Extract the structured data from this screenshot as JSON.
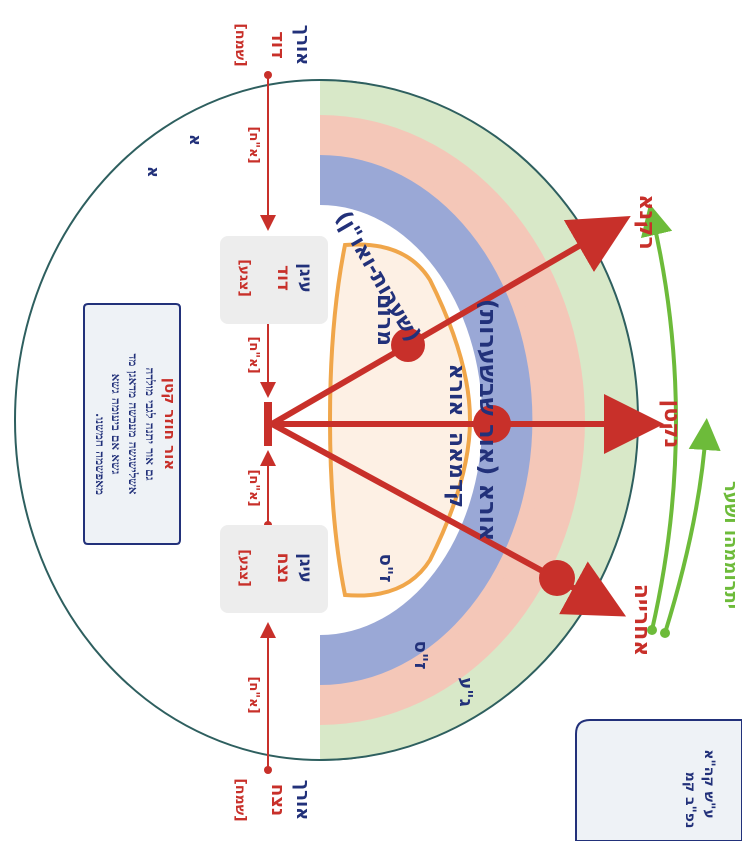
{
  "colors": {
    "arrow_red": "#c8302a",
    "navy": "#22317a",
    "ring_green": "#d8e8c8",
    "ring_pink": "#f4c7b8",
    "ring_blue": "#9aa8d6",
    "inner_fill": "#fdf0e4",
    "inner_stroke": "#f0a64a",
    "outer_stroke": "#2e5f5f",
    "green_arrow": "#6dbb3a",
    "panel_bg": "#eef2f6",
    "box_gray": "#ededed"
  },
  "labels": {
    "top_left": {
      "line1": "אורך",
      "line2": "דוד",
      "tag": "[שמח]"
    },
    "bottom_left": {
      "line1": "אורך",
      "line2": "נצח",
      "tag": "[שמח]"
    },
    "box_top": {
      "line1": "עיגן",
      "line2": "דוד",
      "tag": "[צגע]"
    },
    "box_bottom": {
      "line1": "עיגן",
      "line2": "נצח",
      "tag": "[צגע]"
    },
    "dist_tags": [
      "[א\"ח]",
      "[א\"ח]",
      "[א\"ח]",
      "[א\"ח]"
    ],
    "small_aleph_1": "א",
    "small_aleph_2": "א"
  },
  "rings": {
    "green_label": "ג\"ע",
    "pink_label": "ז\"ס",
    "inner_label": "ז\"ס",
    "arc_outer_text": "אורא (אור שבשערות)",
    "arc_blue_text": "(שערות-ואו\"ן)",
    "arc_center_text_1": "אורא",
    "arc_center_text_2": "קדמאה",
    "inner_text": "מרום"
  },
  "arrows": {
    "top": "רקנא",
    "middle": "נקטן",
    "bottom": "אחרייה",
    "green_text": "יתרוממהו ושער"
  },
  "panel": {
    "title": "אור חוזר קטן",
    "line1": "גם אור יתנה לגבי מולדה",
    "line2": "אשלישגשה מעכשה מדאגן מד",
    "line3": "גשא אם ביעומה גשא",
    "line4": "מאפשמה חמשנו."
  },
  "corner_panel": {
    "line1": "ע\"ש קה\"א",
    "line2": "נפ\"ב קמ"
  }
}
